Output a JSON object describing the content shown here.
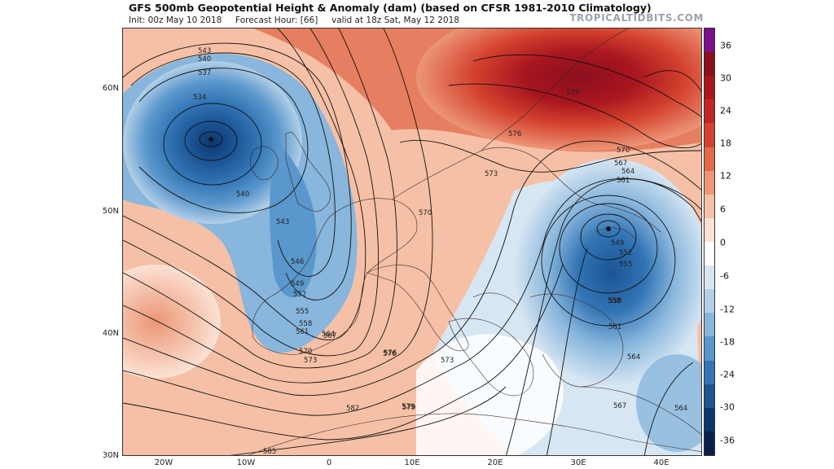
{
  "header": {
    "title": "GFS 500mb Geopotential Height & Anomaly (dam) (based on CFSR 1981-2010 Climatology)",
    "init": "Init: 00z May 10 2018",
    "forecast_hour": "Forecast Hour: [66]",
    "valid": "valid at 18z Sat, May 12 2018",
    "brand": "TROPICALTIDBITS.COM"
  },
  "map": {
    "lat_labels": [
      "60N",
      "50N",
      "40N",
      "30N"
    ],
    "lon_labels": [
      "20W",
      "10W",
      "0",
      "10E",
      "20E",
      "30E",
      "40E"
    ],
    "contour_labels": [
      "543",
      "540",
      "537",
      "534",
      "540",
      "543",
      "546",
      "549",
      "552",
      "555",
      "558",
      "561",
      "564",
      "567",
      "570",
      "573",
      "576",
      "579",
      "582",
      "585",
      "570",
      "570",
      "567",
      "564",
      "561",
      "558",
      "549",
      "552",
      "555",
      "558",
      "561",
      "564",
      "567",
      "564",
      "573",
      "576",
      "579",
      "576",
      "573",
      "579"
    ],
    "lows": [
      {
        "name": "atlantic-low",
        "lat": 56,
        "lon": -14
      },
      {
        "name": "ukraine-low",
        "lat": 48.5,
        "lon": 34
      }
    ]
  },
  "colorbar": {
    "ticks": [
      "36",
      "30",
      "24",
      "18",
      "12",
      "6",
      "0",
      "-6",
      "-12",
      "-18",
      "-24",
      "-30",
      "-36"
    ],
    "colors": [
      "#7a0f8a",
      "#8b0f1e",
      "#a8161f",
      "#c12525",
      "#d4422f",
      "#e06a4a",
      "#ec9676",
      "#f5c0a6",
      "#fbe2d4",
      "#ffffff",
      "#d7e6f3",
      "#b3d0e8",
      "#88b6dc",
      "#5a97cc",
      "#3274b4",
      "#1c5494",
      "#0d366f",
      "#0a1f4a"
    ]
  }
}
